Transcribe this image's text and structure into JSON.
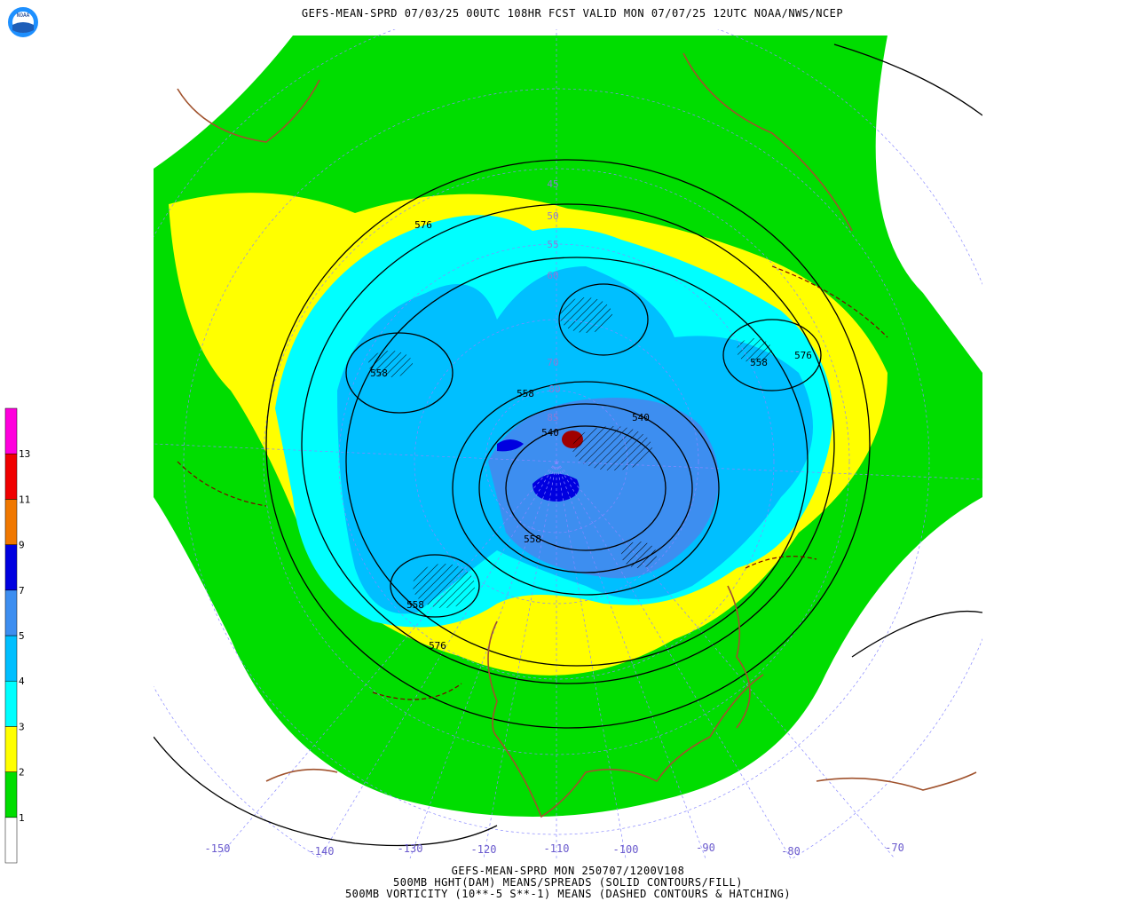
{
  "header": {
    "title": "GEFS-MEAN-SPRD 07/03/25 00UTC 108HR FCST VALID MON 07/07/25 12UTC NOAA/NWS/NCEP",
    "logo": "NOAA"
  },
  "footer": {
    "lines": [
      "GEFS-MEAN-SPRD MON 250707/1200V108",
      "500MB HGHT(DAM) MEANS/SPREADS (SOLID CONTOURS/FILL)",
      "500MB VORTICITY (10**-5 S**-1) MEANS (DASHED CONTOURS & HATCHING)"
    ]
  },
  "colorbar": {
    "levels": [
      1,
      2,
      3,
      4,
      5,
      7,
      9,
      11,
      13
    ],
    "colors": [
      "#ffffff",
      "#00dd00",
      "#ffff00",
      "#00ffff",
      "#00bfff",
      "#3d8ef0",
      "#0000e0",
      "#f07800",
      "#f00000",
      "#ff00dd"
    ]
  },
  "longitude_labels": [
    "-150",
    "-140",
    "-130",
    "-120",
    "-110",
    "-100",
    "-90",
    "-80",
    "-70"
  ],
  "latitude_labels": [
    "45",
    "50",
    "55",
    "60",
    "70",
    "80",
    "85"
  ],
  "contour_labels": [
    "576",
    "558",
    "558",
    "540",
    "540",
    "558",
    "558",
    "576",
    "576",
    "558"
  ]
}
